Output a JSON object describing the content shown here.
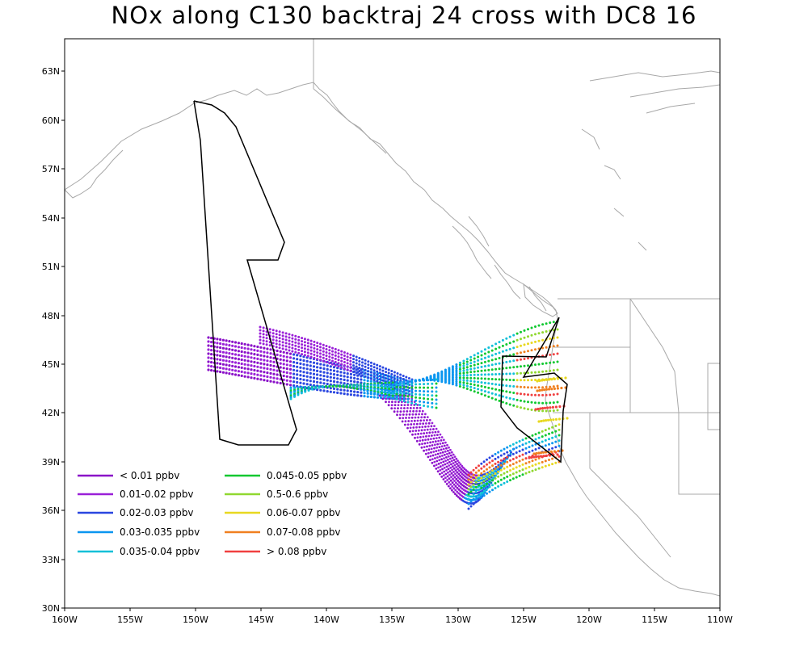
{
  "title": "NOx along C130 backtraj 24 cross with DC8 16",
  "axes": {
    "lon_labels": [
      "160W",
      "155W",
      "150W",
      "145W",
      "140W",
      "135W",
      "130W",
      "125W",
      "120W",
      "115W",
      "110W"
    ],
    "lat_labels": [
      "30N",
      "33N",
      "36N",
      "39N",
      "42N",
      "45N",
      "48N",
      "51N",
      "54N",
      "57N",
      "60N",
      "63N"
    ],
    "lon_range": [
      -160,
      -110
    ],
    "lat_range": [
      30,
      65
    ]
  },
  "legend": {
    "left": [
      {
        "label": "< 0.01 ppbv",
        "color": "#8a10c8"
      },
      {
        "label": "0.01-0.02 ppbv",
        "color": "#9a20d8"
      },
      {
        "label": "0.02-0.03 ppbv",
        "color": "#2a46e0"
      },
      {
        "label": "0.03-0.035 ppbv",
        "color": "#0a96f0"
      },
      {
        "label": "0.035-0.04 ppbv",
        "color": "#10c0d8"
      }
    ],
    "right": [
      {
        "label": "0.045-0.05 ppbv",
        "color": "#10c830"
      },
      {
        "label": "0.5-0.6 ppbv",
        "color": "#90d830"
      },
      {
        "label": "0.06-0.07 ppbv",
        "color": "#e8d820"
      },
      {
        "label": "0.07-0.08 ppbv",
        "color": "#f08020"
      },
      {
        "label": "> 0.08 ppbv",
        "color": "#f04040"
      }
    ]
  },
  "colors": {
    "coastline": "#a8a8a8",
    "flight_track": "#000000",
    "frame": "#000000"
  }
}
